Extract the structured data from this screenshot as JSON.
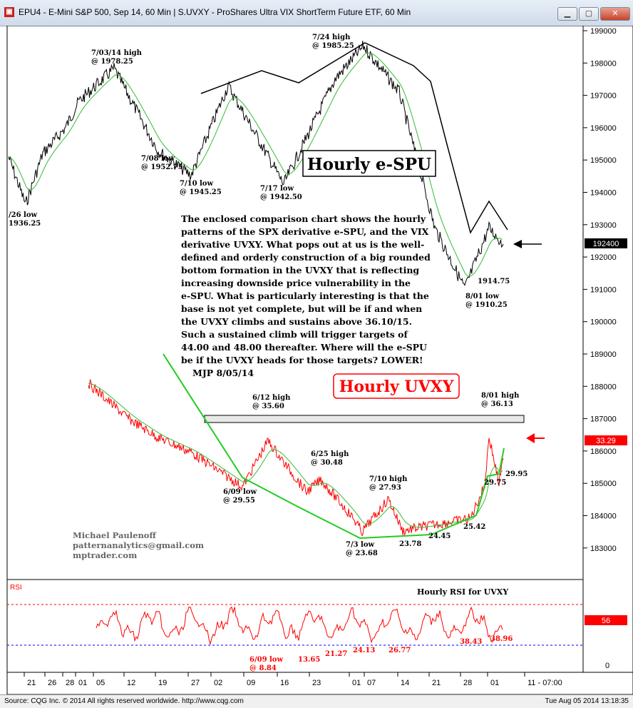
{
  "window": {
    "title": "EPU4 - E-Mini S&P 500, Sep 14, 60 Min   |   S.UVXY - ProShares Ultra VIX ShortTerm Future ETF, 60 Min",
    "minimize_icon": "minimize-icon",
    "maximize_icon": "maximize-icon",
    "close_icon": "close-icon"
  },
  "status": {
    "left": "Source: CQG Inc. © 2014 All rights reserved worldwide. http://www.cqg.com",
    "right": "Tue Aug 05 2014 13:18:35"
  },
  "chart_data": {
    "type": "line",
    "x_ticks": [
      "21",
      "26",
      "28",
      "01",
      "05",
      "12",
      "19",
      "27",
      "02",
      "09",
      "16",
      "23",
      "01",
      "07",
      "14",
      "21",
      "28",
      "01",
      "11 - 07:00"
    ],
    "y_axis": {
      "ticks": [
        "199000",
        "198000",
        "197000",
        "196000",
        "195000",
        "194000",
        "193000",
        "192000",
        "191000",
        "190000",
        "189000",
        "188000",
        "187000",
        "186000",
        "185000",
        "184000",
        "183000"
      ],
      "ylim": [
        182000,
        199000
      ]
    },
    "series": [
      {
        "name": "Hourly e-SPU",
        "color": "#000000",
        "points": [
          {
            "x": "21",
            "y": 1951.0
          },
          {
            "x": "26",
            "y": 1936.25
          },
          {
            "x": "28",
            "y": 1952.0
          },
          {
            "x": "01",
            "y": 1960.0
          },
          {
            "x": "05",
            "y": 1968.0
          },
          {
            "x": "07/03",
            "y": 1978.25
          },
          {
            "x": "07/08",
            "y": 1952.75
          },
          {
            "x": "07/10",
            "y": 1945.25
          },
          {
            "x": "07/14",
            "y": 1973.0
          },
          {
            "x": "07/17",
            "y": 1942.5
          },
          {
            "x": "07/18",
            "y": 1975.0
          },
          {
            "x": "07/24",
            "y": 1985.25
          },
          {
            "x": "07/28",
            "y": 1971.0
          },
          {
            "x": "07/31",
            "y": 1929.0
          },
          {
            "x": "08/01",
            "y": 1910.25
          },
          {
            "x": "08/04",
            "y": 1929.0
          },
          {
            "x": "08/05",
            "y": 1924.0
          }
        ]
      },
      {
        "name": "Hourly UVXY",
        "color": "#ff0000",
        "points": [
          {
            "x": "05",
            "y": 43.1
          },
          {
            "x": "12",
            "y": 38.5
          },
          {
            "x": "19",
            "y": 36.0
          },
          {
            "x": "27",
            "y": 34.1
          },
          {
            "x": "06/09",
            "y": 29.55
          },
          {
            "x": "06/12",
            "y": 35.6
          },
          {
            "x": "06/16",
            "y": 32.5
          },
          {
            "x": "06/23",
            "y": 28.9
          },
          {
            "x": "06/25",
            "y": 30.48
          },
          {
            "x": "07/01",
            "y": 25.5
          },
          {
            "x": "07/03",
            "y": 23.68
          },
          {
            "x": "07/10",
            "y": 27.93
          },
          {
            "x": "07/14",
            "y": 23.78
          },
          {
            "x": "07/21",
            "y": 24.45
          },
          {
            "x": "07/28",
            "y": 25.42
          },
          {
            "x": "07/30",
            "y": 29.75
          },
          {
            "x": "08/01",
            "y": 36.13
          },
          {
            "x": "08/04",
            "y": 29.95
          },
          {
            "x": "08/05",
            "y": 33.29
          }
        ]
      }
    ],
    "price_tags": [
      {
        "value": "192400",
        "color": "#000000"
      },
      {
        "value": "33.29",
        "color": "#ff0000"
      }
    ],
    "titles": {
      "espu": "Hourly e-SPU",
      "uvxy": "Hourly UVXY",
      "rsi": "Hourly RSI for UVXY"
    },
    "annotations_top": [
      {
        "line1": "7/03/14 high",
        "line2": "@ 1978.25"
      },
      {
        "line1": "7/24 high",
        "line2": "@ 1985.25"
      },
      {
        "line1": "7/08 low",
        "line2": "@ 1952.75"
      },
      {
        "line1": "7/10 low",
        "line2": "@ 1945.25"
      },
      {
        "line1": "7/17 low",
        "line2": "@ 1942.50"
      },
      {
        "line1": "/26 low",
        "line2": "1936.25"
      },
      {
        "line1": "1914.75",
        "line2": ""
      },
      {
        "line1": "8/01 low",
        "line2": "@ 1910.25"
      }
    ],
    "annotations_uvxy": [
      {
        "line1": "6/12 high",
        "line2": "@ 35.60"
      },
      {
        "line1": "6/25 high",
        "line2": "@ 30.48"
      },
      {
        "line1": "6/09 low",
        "line2": "@ 29.55"
      },
      {
        "line1": "7/10 high",
        "line2": "@ 27.93"
      },
      {
        "line1": "7/3 low",
        "line2": "@ 23.68"
      },
      {
        "line1": "8/01 high",
        "line2": "@ 36.13"
      },
      {
        "line1": "23.78",
        "line2": ""
      },
      {
        "line1": "24.45",
        "line2": ""
      },
      {
        "line1": "25.42",
        "line2": ""
      },
      {
        "line1": "29.75",
        "line2": ""
      },
      {
        "line1": "29.95",
        "line2": ""
      }
    ],
    "commentary": [
      "The enclosed comparison chart shows the hourly",
      "patterns of the SPX derivative e-SPU, and the VIX",
      "derivative UVXY. What pops out at us is the well-",
      "defined and orderly construction of a big rounded",
      "bottom formation in the UVXY that is reflecting",
      "increasing downside price vulnerability in the",
      "e-SPU. What is particularly interesting is that the",
      "base is not yet complete, but will be if and when",
      "the UVXY climbs and sustains above 36.10/15.",
      "Such a sustained climb will trigger targets of",
      "44.00 and 48.00 thereafter. Where will the e-SPU",
      "be if the UVXY heads for those targets? LOWER!",
      "   MJP  8/05/14"
    ],
    "signature": [
      "Michael Paulenoff",
      "patternanalytics@gmail.com",
      "mptrader.com"
    ],
    "rsi": {
      "label": "RSI",
      "scale_top": "56",
      "scale_bottom": "0",
      "lows": [
        {
          "line1": "6/09 low",
          "line2": "@ 8.84"
        },
        {
          "line1": "13.65",
          "line2": ""
        },
        {
          "line1": "21.27",
          "line2": ""
        },
        {
          "line1": "24.13",
          "line2": ""
        },
        {
          "line1": "26.77",
          "line2": ""
        },
        {
          "line1": "38.43",
          "line2": ""
        },
        {
          "line1": "38.96",
          "line2": ""
        }
      ]
    }
  }
}
